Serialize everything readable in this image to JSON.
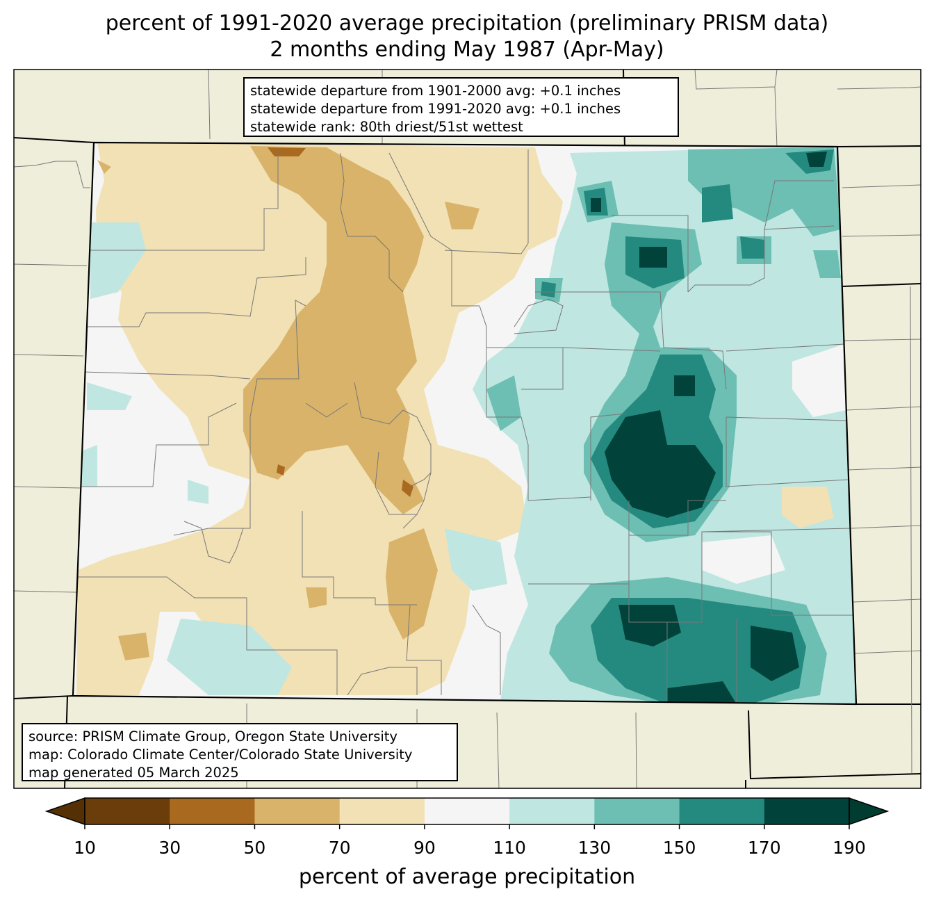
{
  "title": {
    "line1": "percent of 1991-2020 average precipitation (preliminary PRISM data)",
    "line2": "2 months ending May 1987 (Apr-May)"
  },
  "stats_box": {
    "line1": "statewide departure from 1901-2000 avg: +0.1 inches",
    "line2": "statewide departure from 1991-2020 avg: +0.1 inches",
    "line3": "statewide rank: 80th driest/51st wettest"
  },
  "source_box": {
    "line1": "source: PRISM Climate Group, Oregon State University",
    "line2": "map: Colorado Climate Center/Colorado State University",
    "line3": "map generated 05 March 2025"
  },
  "colorbar": {
    "label": "percent of average precipitation",
    "ticks": [
      "10",
      "30",
      "50",
      "70",
      "90",
      "110",
      "130",
      "150",
      "170",
      "190"
    ],
    "colors": [
      "#6b3d0a",
      "#a9691f",
      "#d9b36a",
      "#f2e1b4",
      "#f4f5f4",
      "#bfe6e1",
      "#6dbfb3",
      "#248a80",
      "#01433a"
    ],
    "under_color": "#553005",
    "over_color": "#003c30"
  },
  "map_colors": {
    "background": "#efeedb",
    "state_fill": "#f4f5f4"
  }
}
